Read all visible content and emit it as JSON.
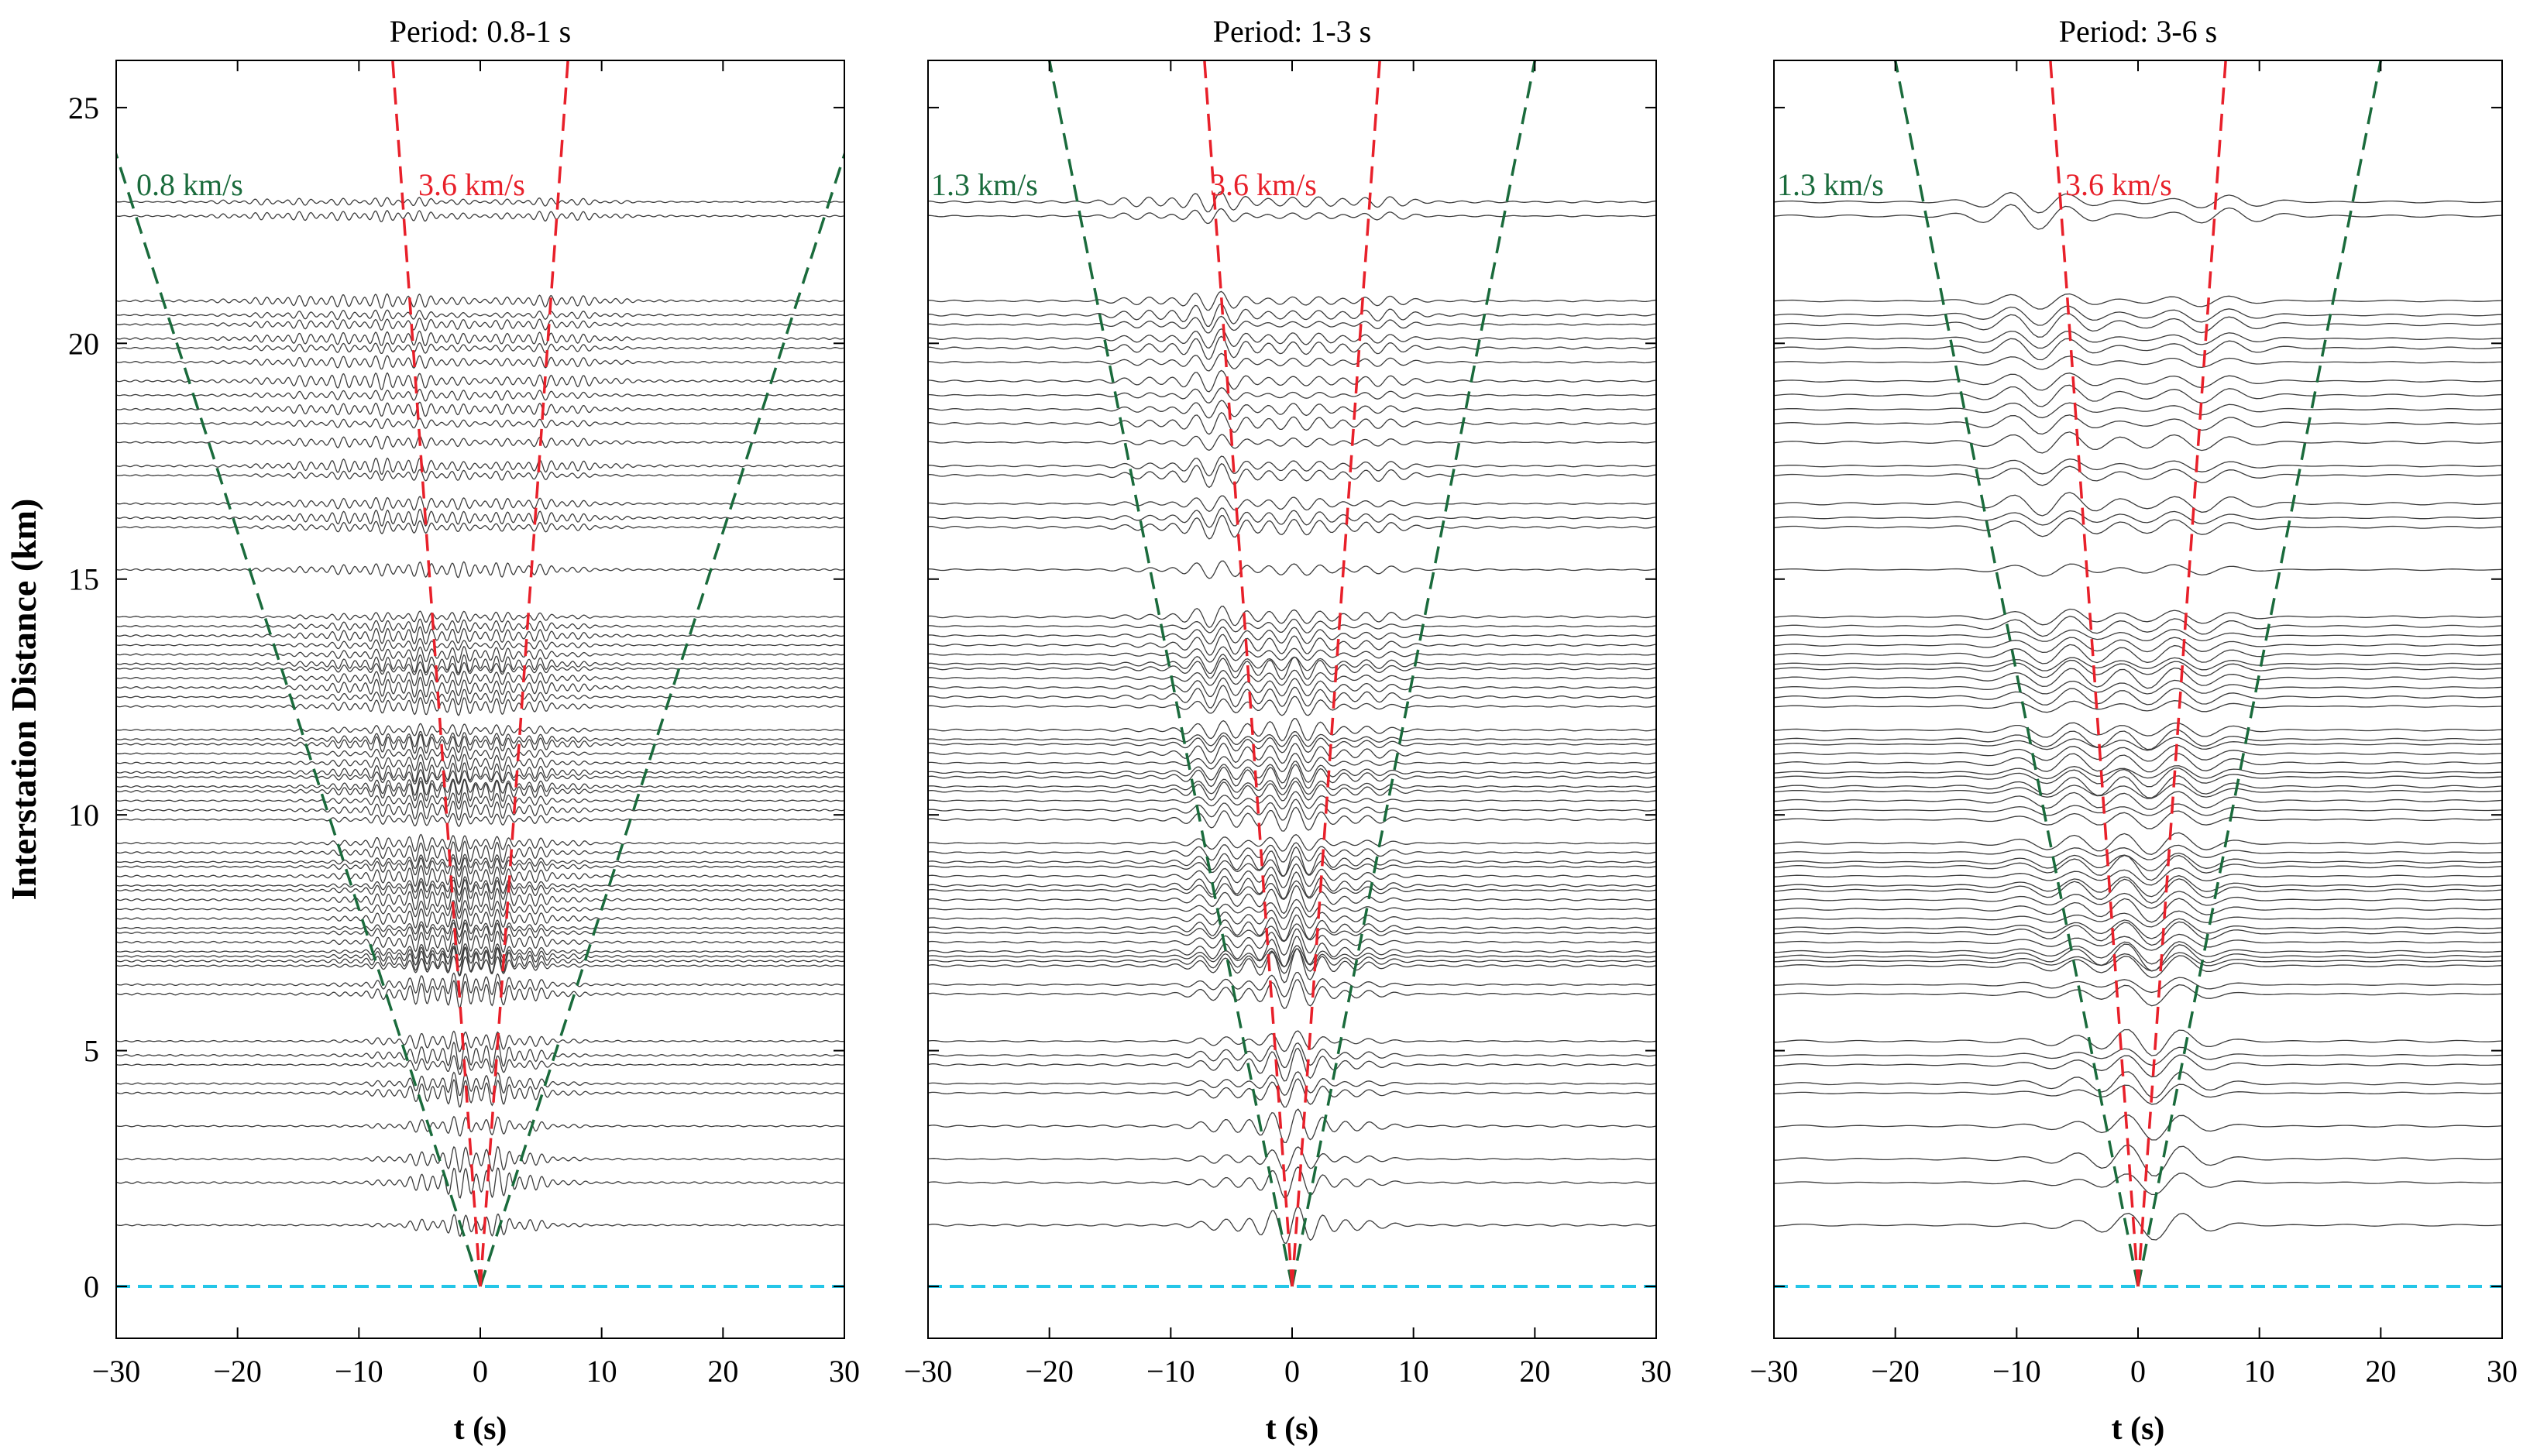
{
  "colors": {
    "green": "#1a6b3c",
    "red": "#e8202a",
    "cyan": "#24c6e8",
    "trace": "#3c3c3c",
    "axis": "#000000"
  },
  "y_axis_label": "Interstation Distance (km)",
  "chart_data": [
    {
      "type": "line",
      "title": "Period: 0.8-1 s",
      "xlabel": "t (s)",
      "ylabel": "Interstation Distance (km)",
      "xlim": [
        -30,
        30
      ],
      "ylim": [
        -1.1,
        26
      ],
      "xticks": [
        -30,
        -20,
        -10,
        0,
        10,
        20,
        30
      ],
      "yticks": [
        0,
        5,
        10,
        15,
        20,
        25
      ],
      "period_s": 0.9,
      "velocity_lines": [
        {
          "label": "0.8 km/s",
          "velocity": 0.8,
          "color": "green"
        },
        {
          "label": "3.6 km/s",
          "velocity": 3.6,
          "color": "red"
        }
      ],
      "zero_line": 0
    },
    {
      "type": "line",
      "title": "Period: 1-3 s",
      "xlabel": "t (s)",
      "ylabel": "",
      "xlim": [
        -30,
        30
      ],
      "ylim": [
        -1.1,
        26
      ],
      "xticks": [
        -30,
        -20,
        -10,
        0,
        10,
        20,
        30
      ],
      "yticks": [],
      "period_s": 2.0,
      "velocity_lines": [
        {
          "label": "1.3 km/s",
          "velocity": 1.3,
          "color": "green"
        },
        {
          "label": "3.6 km/s",
          "velocity": 3.6,
          "color": "red"
        }
      ],
      "zero_line": 0
    },
    {
      "type": "line",
      "title": "Period: 3-6 s",
      "xlabel": "t (s)",
      "ylabel": "",
      "xlim": [
        -30,
        30
      ],
      "ylim": [
        -1.1,
        26
      ],
      "xticks": [
        -30,
        -20,
        -10,
        0,
        10,
        20,
        30
      ],
      "yticks": [],
      "period_s": 4.5,
      "velocity_lines": [
        {
          "label": "1.3 km/s",
          "velocity": 1.3,
          "color": "green"
        },
        {
          "label": "3.6 km/s",
          "velocity": 3.6,
          "color": "red"
        }
      ],
      "zero_line": 0
    }
  ],
  "trace_distances_km": [
    1.3,
    2.2,
    2.7,
    3.4,
    4.1,
    4.3,
    4.7,
    4.9,
    5.2,
    6.2,
    6.4,
    6.8,
    6.9,
    7.0,
    7.1,
    7.3,
    7.5,
    7.6,
    7.8,
    8.0,
    8.2,
    8.4,
    8.5,
    8.7,
    8.9,
    9.0,
    9.2,
    9.4,
    9.9,
    10.1,
    10.3,
    10.5,
    10.6,
    10.8,
    10.9,
    11.1,
    11.3,
    11.5,
    11.6,
    11.8,
    12.3,
    12.5,
    12.7,
    12.9,
    13.1,
    13.2,
    13.4,
    13.6,
    13.8,
    14.0,
    14.2,
    15.2,
    16.1,
    16.3,
    16.6,
    17.2,
    17.4,
    17.9,
    18.3,
    18.6,
    18.9,
    19.2,
    19.6,
    19.9,
    20.1,
    20.4,
    20.6,
    20.9,
    22.7,
    23.0
  ]
}
